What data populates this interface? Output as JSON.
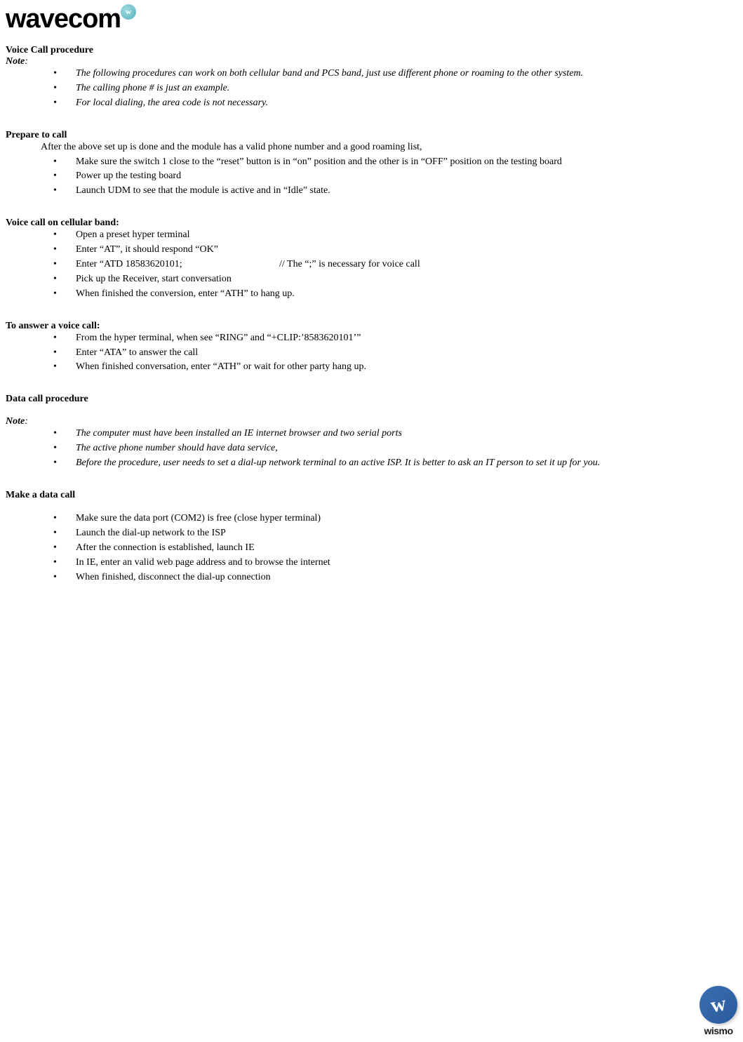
{
  "logo": {
    "text": "wavecom",
    "globe_label": "w"
  },
  "section1": {
    "heading": "Voice Call procedure",
    "note_label": "Note",
    "notes": [
      "The following procedures can work on both cellular band and PCS band, just use different phone or roaming to the other system.",
      "The calling phone # is just an example.",
      "For local dialing, the area code is not necessary."
    ]
  },
  "section2": {
    "heading": "Prepare to call",
    "intro": "After the above set up is done and the module has a valid phone number and a good roaming list,",
    "items": [
      "Make sure the switch 1 close to the “reset” button is in “on” position and the other is in “OFF” position on the testing board",
      "Power up the testing board",
      "Launch UDM to see that the module is active and in “Idle” state."
    ]
  },
  "section3": {
    "heading": "Voice call on cellular band:",
    "items_pre": [
      "Open a preset hyper terminal",
      "Enter “AT”, it should respond “OK”"
    ],
    "atd_cmd": "Enter “ATD 18583620101;",
    "atd_comment": "// The “;” is necessary for voice call",
    "items_post": [
      "Pick up the Receiver, start conversation",
      "When finished the conversion, enter “ATH” to hang up."
    ]
  },
  "section4": {
    "heading": "To answer a voice call:",
    "items": [
      "From the hyper terminal, when see “RING” and “+CLIP:’8583620101’”",
      "Enter “ATA” to answer the call",
      "When finished conversation, enter “ATH” or wait for other party hang up."
    ]
  },
  "section5": {
    "heading": "Data call procedure",
    "note_label": "Note",
    "notes": [
      "The computer must have been installed an IE internet browser and two serial ports",
      "The active phone number should have data service,",
      "Before the procedure, user needs to set a dial-up network terminal to an active ISP. It is better to ask an IT person to set it up for you."
    ]
  },
  "section6": {
    "heading": "Make a data call",
    "items": [
      "Make sure the data port (COM2) is free (close hyper terminal)",
      "Launch the dial-up network to the ISP",
      "After the connection is established, launch IE",
      "In IE, enter an valid web page address and to browse the internet",
      "When finished, disconnect the dial-up connection"
    ]
  },
  "footer": {
    "swoosh": "w",
    "text": "wismo"
  }
}
